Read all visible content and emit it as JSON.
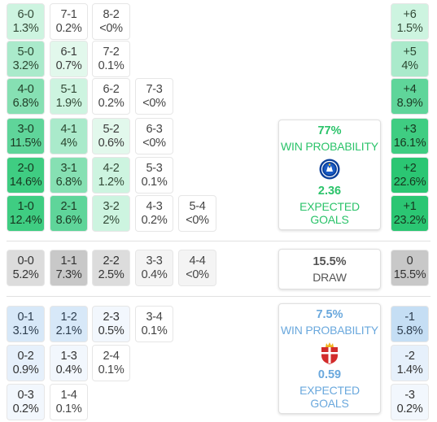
{
  "home": {
    "rows": [
      [
        {
          "score": "6-0",
          "prob": "1.3%"
        },
        {
          "score": "7-1",
          "prob": "0.2%"
        },
        {
          "score": "8-2",
          "prob": "<0%"
        }
      ],
      [
        {
          "score": "5-0",
          "prob": "3.2%"
        },
        {
          "score": "6-1",
          "prob": "0.7%"
        },
        {
          "score": "7-2",
          "prob": "0.1%"
        }
      ],
      [
        {
          "score": "4-0",
          "prob": "6.8%"
        },
        {
          "score": "5-1",
          "prob": "1.9%"
        },
        {
          "score": "6-2",
          "prob": "0.2%"
        },
        {
          "score": "7-3",
          "prob": "<0%"
        }
      ],
      [
        {
          "score": "3-0",
          "prob": "11.5%"
        },
        {
          "score": "4-1",
          "prob": "4%"
        },
        {
          "score": "5-2",
          "prob": "0.6%"
        },
        {
          "score": "6-3",
          "prob": "<0%"
        }
      ],
      [
        {
          "score": "2-0",
          "prob": "14.6%"
        },
        {
          "score": "3-1",
          "prob": "6.8%"
        },
        {
          "score": "4-2",
          "prob": "1.2%"
        },
        {
          "score": "5-3",
          "prob": "0.1%"
        }
      ],
      [
        {
          "score": "1-0",
          "prob": "12.4%"
        },
        {
          "score": "2-1",
          "prob": "8.6%"
        },
        {
          "score": "3-2",
          "prob": "2%"
        },
        {
          "score": "4-3",
          "prob": "0.2%"
        },
        {
          "score": "5-4",
          "prob": "<0%"
        }
      ]
    ],
    "margins": [
      {
        "label": "+6",
        "prob": "1.5%"
      },
      {
        "label": "+5",
        "prob": "4%"
      },
      {
        "label": "+4",
        "prob": "8.9%"
      },
      {
        "label": "+3",
        "prob": "16.1%"
      },
      {
        "label": "+2",
        "prob": "22.6%"
      },
      {
        "label": "+1",
        "prob": "23.2%"
      }
    ],
    "card": {
      "win_pct": "77%",
      "win_label": "WIN PROBABILITY",
      "xg": "2.36",
      "xg_label": "EXPECTED GOALS",
      "crest": "chelsea-crest-icon",
      "accent": "#2bc36a"
    }
  },
  "draw": {
    "row": [
      {
        "score": "0-0",
        "prob": "5.2%"
      },
      {
        "score": "1-1",
        "prob": "7.3%"
      },
      {
        "score": "2-2",
        "prob": "2.5%"
      },
      {
        "score": "3-3",
        "prob": "0.4%"
      },
      {
        "score": "4-4",
        "prob": "<0%"
      }
    ],
    "margin": {
      "label": "0",
      "prob": "15.5%"
    },
    "card": {
      "pct": "15.5%",
      "label": "DRAW"
    }
  },
  "away": {
    "rows": [
      [
        {
          "score": "0-1",
          "prob": "3.1%"
        },
        {
          "score": "1-2",
          "prob": "2.1%"
        },
        {
          "score": "2-3",
          "prob": "0.5%"
        },
        {
          "score": "3-4",
          "prob": "0.1%"
        }
      ],
      [
        {
          "score": "0-2",
          "prob": "0.9%"
        },
        {
          "score": "1-3",
          "prob": "0.4%"
        },
        {
          "score": "2-4",
          "prob": "0.1%"
        }
      ],
      [
        {
          "score": "0-3",
          "prob": "0.2%"
        },
        {
          "score": "1-4",
          "prob": "0.1%"
        }
      ]
    ],
    "margins": [
      {
        "label": "-1",
        "prob": "5.8%"
      },
      {
        "label": "-2",
        "prob": "1.4%"
      },
      {
        "label": "-3",
        "prob": "0.2%"
      }
    ],
    "card": {
      "win_pct": "7.5%",
      "win_label": "WIN PROBABILITY",
      "xg": "0.59",
      "xg_label": "EXPECTED GOALS",
      "crest": "sunderland-crest-icon",
      "accent": "#6aa8dd"
    }
  }
}
